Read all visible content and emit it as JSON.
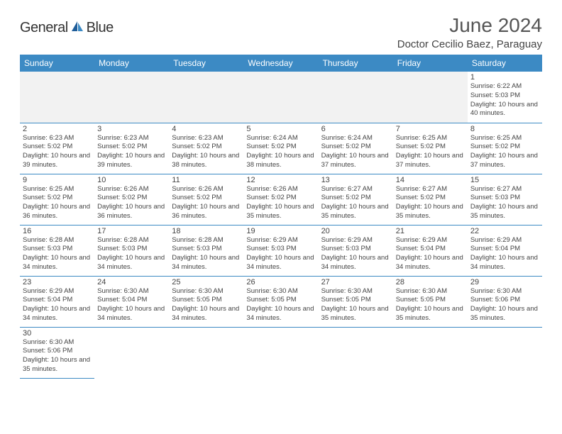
{
  "logo": {
    "text_general": "General",
    "text_blue": "Blue"
  },
  "header": {
    "month_title": "June 2024",
    "location": "Doctor Cecilio Baez, Paraguay"
  },
  "colors": {
    "header_bg": "#3c8ac4",
    "header_text": "#ffffff",
    "border": "#3c8ac4",
    "empty_bg": "#f2f2f2",
    "text": "#444444",
    "logo_blue": "#2d7fc4"
  },
  "day_names": [
    "Sunday",
    "Monday",
    "Tuesday",
    "Wednesday",
    "Thursday",
    "Friday",
    "Saturday"
  ],
  "labels": {
    "sunrise": "Sunrise: ",
    "sunset": "Sunset: ",
    "daylight": "Daylight: "
  },
  "weeks": [
    [
      {
        "type": "empty"
      },
      {
        "type": "empty"
      },
      {
        "type": "empty"
      },
      {
        "type": "empty"
      },
      {
        "type": "empty"
      },
      {
        "type": "empty"
      },
      {
        "type": "day",
        "n": "1",
        "sunrise": "6:22 AM",
        "sunset": "5:03 PM",
        "daylight": "10 hours and 40 minutes."
      }
    ],
    [
      {
        "type": "day",
        "n": "2",
        "sunrise": "6:23 AM",
        "sunset": "5:02 PM",
        "daylight": "10 hours and 39 minutes."
      },
      {
        "type": "day",
        "n": "3",
        "sunrise": "6:23 AM",
        "sunset": "5:02 PM",
        "daylight": "10 hours and 39 minutes."
      },
      {
        "type": "day",
        "n": "4",
        "sunrise": "6:23 AM",
        "sunset": "5:02 PM",
        "daylight": "10 hours and 38 minutes."
      },
      {
        "type": "day",
        "n": "5",
        "sunrise": "6:24 AM",
        "sunset": "5:02 PM",
        "daylight": "10 hours and 38 minutes."
      },
      {
        "type": "day",
        "n": "6",
        "sunrise": "6:24 AM",
        "sunset": "5:02 PM",
        "daylight": "10 hours and 37 minutes."
      },
      {
        "type": "day",
        "n": "7",
        "sunrise": "6:25 AM",
        "sunset": "5:02 PM",
        "daylight": "10 hours and 37 minutes."
      },
      {
        "type": "day",
        "n": "8",
        "sunrise": "6:25 AM",
        "sunset": "5:02 PM",
        "daylight": "10 hours and 37 minutes."
      }
    ],
    [
      {
        "type": "day",
        "n": "9",
        "sunrise": "6:25 AM",
        "sunset": "5:02 PM",
        "daylight": "10 hours and 36 minutes."
      },
      {
        "type": "day",
        "n": "10",
        "sunrise": "6:26 AM",
        "sunset": "5:02 PM",
        "daylight": "10 hours and 36 minutes."
      },
      {
        "type": "day",
        "n": "11",
        "sunrise": "6:26 AM",
        "sunset": "5:02 PM",
        "daylight": "10 hours and 36 minutes."
      },
      {
        "type": "day",
        "n": "12",
        "sunrise": "6:26 AM",
        "sunset": "5:02 PM",
        "daylight": "10 hours and 35 minutes."
      },
      {
        "type": "day",
        "n": "13",
        "sunrise": "6:27 AM",
        "sunset": "5:02 PM",
        "daylight": "10 hours and 35 minutes."
      },
      {
        "type": "day",
        "n": "14",
        "sunrise": "6:27 AM",
        "sunset": "5:02 PM",
        "daylight": "10 hours and 35 minutes."
      },
      {
        "type": "day",
        "n": "15",
        "sunrise": "6:27 AM",
        "sunset": "5:03 PM",
        "daylight": "10 hours and 35 minutes."
      }
    ],
    [
      {
        "type": "day",
        "n": "16",
        "sunrise": "6:28 AM",
        "sunset": "5:03 PM",
        "daylight": "10 hours and 34 minutes."
      },
      {
        "type": "day",
        "n": "17",
        "sunrise": "6:28 AM",
        "sunset": "5:03 PM",
        "daylight": "10 hours and 34 minutes."
      },
      {
        "type": "day",
        "n": "18",
        "sunrise": "6:28 AM",
        "sunset": "5:03 PM",
        "daylight": "10 hours and 34 minutes."
      },
      {
        "type": "day",
        "n": "19",
        "sunrise": "6:29 AM",
        "sunset": "5:03 PM",
        "daylight": "10 hours and 34 minutes."
      },
      {
        "type": "day",
        "n": "20",
        "sunrise": "6:29 AM",
        "sunset": "5:03 PM",
        "daylight": "10 hours and 34 minutes."
      },
      {
        "type": "day",
        "n": "21",
        "sunrise": "6:29 AM",
        "sunset": "5:04 PM",
        "daylight": "10 hours and 34 minutes."
      },
      {
        "type": "day",
        "n": "22",
        "sunrise": "6:29 AM",
        "sunset": "5:04 PM",
        "daylight": "10 hours and 34 minutes."
      }
    ],
    [
      {
        "type": "day",
        "n": "23",
        "sunrise": "6:29 AM",
        "sunset": "5:04 PM",
        "daylight": "10 hours and 34 minutes."
      },
      {
        "type": "day",
        "n": "24",
        "sunrise": "6:30 AM",
        "sunset": "5:04 PM",
        "daylight": "10 hours and 34 minutes."
      },
      {
        "type": "day",
        "n": "25",
        "sunrise": "6:30 AM",
        "sunset": "5:05 PM",
        "daylight": "10 hours and 34 minutes."
      },
      {
        "type": "day",
        "n": "26",
        "sunrise": "6:30 AM",
        "sunset": "5:05 PM",
        "daylight": "10 hours and 34 minutes."
      },
      {
        "type": "day",
        "n": "27",
        "sunrise": "6:30 AM",
        "sunset": "5:05 PM",
        "daylight": "10 hours and 35 minutes."
      },
      {
        "type": "day",
        "n": "28",
        "sunrise": "6:30 AM",
        "sunset": "5:05 PM",
        "daylight": "10 hours and 35 minutes."
      },
      {
        "type": "day",
        "n": "29",
        "sunrise": "6:30 AM",
        "sunset": "5:06 PM",
        "daylight": "10 hours and 35 minutes."
      }
    ],
    [
      {
        "type": "day",
        "n": "30",
        "sunrise": "6:30 AM",
        "sunset": "5:06 PM",
        "daylight": "10 hours and 35 minutes."
      },
      {
        "type": "blank"
      },
      {
        "type": "blank"
      },
      {
        "type": "blank"
      },
      {
        "type": "blank"
      },
      {
        "type": "blank"
      },
      {
        "type": "blank"
      }
    ]
  ]
}
